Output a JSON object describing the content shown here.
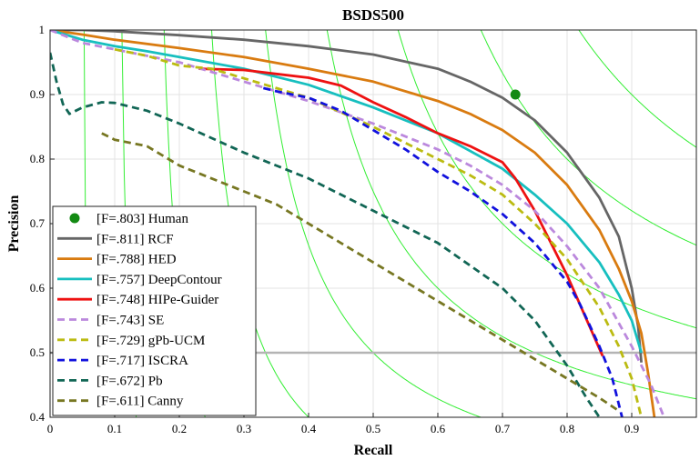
{
  "chart_data": {
    "type": "line",
    "title": "BSDS500",
    "xlabel": "Recall",
    "ylabel": "Precision",
    "xlim": [
      0,
      1
    ],
    "ylim": [
      0.4,
      1
    ],
    "xticks": [
      0,
      0.1,
      0.2,
      0.3,
      0.4,
      0.5,
      0.6,
      0.7,
      0.8,
      0.9
    ],
    "xtick_labels": [
      "0",
      "0.1",
      "0.2",
      "0.3",
      "0.4",
      "0.5",
      "0.6",
      "0.7",
      "0.8",
      "0.9"
    ],
    "yticks": [
      0.4,
      0.5,
      0.6,
      0.7,
      0.8,
      0.9,
      1
    ],
    "ytick_labels": [
      "0.4",
      "0.5",
      "0.6",
      "0.7",
      "0.8",
      "0.9",
      "1"
    ],
    "grid": true,
    "legend_position": "bottom-left",
    "iso_f_values": [
      0.1,
      0.2,
      0.3,
      0.4,
      0.5,
      0.6,
      0.7,
      0.8,
      0.9
    ],
    "iso_f_color": "#33ee33",
    "reference_line": {
      "y": 0.5,
      "color": "#b4b4b4"
    },
    "human_point": {
      "label": "[F=.803] Human",
      "x": 0.72,
      "y": 0.9,
      "color": "#138a13"
    },
    "series": [
      {
        "name": "[F=.811] RCF",
        "color": "#666666",
        "dash": "solid",
        "x": [
          0,
          0.05,
          0.1,
          0.2,
          0.3,
          0.4,
          0.5,
          0.6,
          0.65,
          0.7,
          0.75,
          0.8,
          0.85,
          0.88,
          0.9,
          0.91,
          0.915
        ],
        "y": [
          1,
          1,
          0.998,
          0.992,
          0.985,
          0.975,
          0.962,
          0.94,
          0.92,
          0.895,
          0.86,
          0.81,
          0.74,
          0.68,
          0.6,
          0.54,
          0.485
        ]
      },
      {
        "name": "[F=.788] HED",
        "color": "#d97b10",
        "dash": "solid",
        "x": [
          0,
          0.05,
          0.1,
          0.2,
          0.3,
          0.4,
          0.5,
          0.6,
          0.65,
          0.7,
          0.75,
          0.8,
          0.85,
          0.88,
          0.9,
          0.915,
          0.925,
          0.935
        ],
        "y": [
          1,
          0.993,
          0.985,
          0.972,
          0.958,
          0.94,
          0.92,
          0.89,
          0.87,
          0.845,
          0.81,
          0.76,
          0.69,
          0.63,
          0.58,
          0.53,
          0.47,
          0.4
        ]
      },
      {
        "name": "[F=.757] DeepContour",
        "color": "#17bfbf",
        "dash": "solid",
        "x": [
          0,
          0.05,
          0.1,
          0.15,
          0.2,
          0.3,
          0.4,
          0.5,
          0.6,
          0.7,
          0.75,
          0.8,
          0.85,
          0.88,
          0.9,
          0.915
        ],
        "y": [
          1,
          0.985,
          0.975,
          0.967,
          0.958,
          0.94,
          0.915,
          0.88,
          0.84,
          0.785,
          0.745,
          0.7,
          0.64,
          0.59,
          0.55,
          0.5
        ]
      },
      {
        "name": "[F=.748] HIPe-Guider",
        "color": "#ee1111",
        "dash": "solid",
        "x": [
          0.23,
          0.3,
          0.35,
          0.4,
          0.45,
          0.5,
          0.55,
          0.6,
          0.65,
          0.7,
          0.72,
          0.75,
          0.8,
          0.855
        ],
        "y": [
          0.94,
          0.938,
          0.932,
          0.926,
          0.914,
          0.888,
          0.865,
          0.84,
          0.82,
          0.795,
          0.77,
          0.72,
          0.62,
          0.495
        ]
      },
      {
        "name": "[F=.743] SE",
        "color": "#bb88dd",
        "dash": "dashed",
        "x": [
          0,
          0.05,
          0.1,
          0.2,
          0.3,
          0.4,
          0.5,
          0.6,
          0.65,
          0.7,
          0.75,
          0.8,
          0.85,
          0.9,
          0.93,
          0.95
        ],
        "y": [
          1,
          0.98,
          0.97,
          0.95,
          0.92,
          0.89,
          0.855,
          0.815,
          0.79,
          0.76,
          0.72,
          0.665,
          0.6,
          0.51,
          0.45,
          0.4
        ]
      },
      {
        "name": "[F=.729] gPb-UCM",
        "color": "#bbbb11",
        "dash": "dashed",
        "x": [
          0.1,
          0.15,
          0.2,
          0.25,
          0.3,
          0.35,
          0.4,
          0.5,
          0.6,
          0.65,
          0.7,
          0.75,
          0.8,
          0.85,
          0.88,
          0.9,
          0.915
        ],
        "y": [
          0.97,
          0.96,
          0.945,
          0.94,
          0.925,
          0.91,
          0.895,
          0.85,
          0.8,
          0.775,
          0.745,
          0.7,
          0.645,
          0.57,
          0.51,
          0.46,
          0.4
        ]
      },
      {
        "name": "[F=.717] ISCRA",
        "color": "#1111dd",
        "dash": "dashed",
        "x": [
          0.33,
          0.35,
          0.4,
          0.45,
          0.5,
          0.55,
          0.6,
          0.65,
          0.7,
          0.75,
          0.8,
          0.82,
          0.85,
          0.87,
          0.885
        ],
        "y": [
          0.91,
          0.905,
          0.895,
          0.875,
          0.845,
          0.815,
          0.78,
          0.75,
          0.715,
          0.67,
          0.61,
          0.575,
          0.51,
          0.46,
          0.4
        ]
      },
      {
        "name": "[F=.672] Pb",
        "color": "#116655",
        "dash": "dashed",
        "x": [
          0,
          0.01,
          0.02,
          0.03,
          0.05,
          0.08,
          0.1,
          0.15,
          0.2,
          0.3,
          0.4,
          0.5,
          0.6,
          0.7,
          0.75,
          0.8,
          0.83,
          0.85
        ],
        "y": [
          0.965,
          0.92,
          0.885,
          0.87,
          0.88,
          0.888,
          0.887,
          0.875,
          0.855,
          0.81,
          0.77,
          0.72,
          0.67,
          0.6,
          0.55,
          0.48,
          0.43,
          0.4
        ]
      },
      {
        "name": "[F=.611] Canny",
        "color": "#777722",
        "dash": "dashed",
        "x": [
          0.08,
          0.1,
          0.15,
          0.2,
          0.25,
          0.3,
          0.35,
          0.4,
          0.45,
          0.5,
          0.55,
          0.6,
          0.65,
          0.7,
          0.75,
          0.8,
          0.85,
          0.88
        ],
        "y": [
          0.84,
          0.83,
          0.82,
          0.79,
          0.77,
          0.75,
          0.73,
          0.7,
          0.67,
          0.64,
          0.61,
          0.58,
          0.55,
          0.52,
          0.49,
          0.46,
          0.43,
          0.41
        ]
      }
    ]
  }
}
